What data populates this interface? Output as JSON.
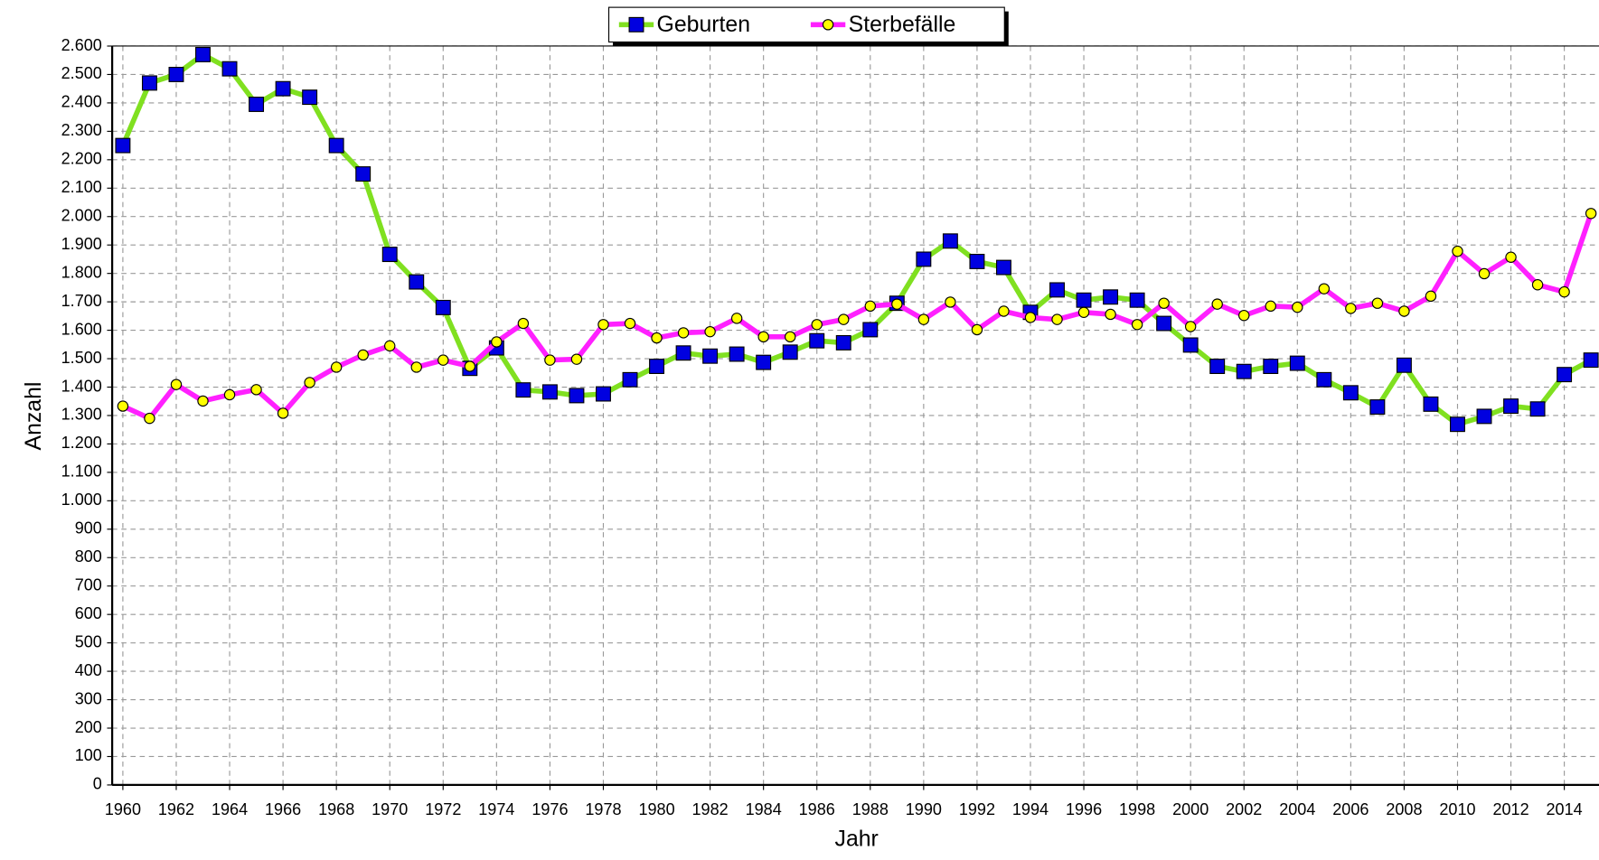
{
  "chart_data": {
    "type": "line",
    "x": [
      1960,
      1961,
      1962,
      1963,
      1964,
      1965,
      1966,
      1967,
      1968,
      1969,
      1970,
      1971,
      1972,
      1973,
      1974,
      1975,
      1976,
      1977,
      1978,
      1979,
      1980,
      1981,
      1982,
      1983,
      1984,
      1985,
      1986,
      1987,
      1988,
      1989,
      1990,
      1991,
      1992,
      1993,
      1994,
      1995,
      1996,
      1997,
      1998,
      1999,
      2000,
      2001,
      2002,
      2003,
      2004,
      2005,
      2006,
      2007,
      2008,
      2009,
      2010,
      2011,
      2012,
      2013,
      2014,
      2015
    ],
    "series": [
      {
        "name": "Geburten",
        "color": "#80e020",
        "marker": "square",
        "marker_color": "#0000e0",
        "values": [
          2250,
          2470,
          2500,
          2570,
          2520,
          2395,
          2450,
          2420,
          2250,
          2150,
          1867,
          1770,
          1680,
          1466,
          1538,
          1390,
          1383,
          1370,
          1376,
          1426,
          1473,
          1520,
          1509,
          1516,
          1487,
          1523,
          1563,
          1556,
          1602,
          1695,
          1850,
          1914,
          1842,
          1821,
          1663,
          1742,
          1706,
          1717,
          1706,
          1624,
          1548,
          1473,
          1455,
          1473,
          1484,
          1426,
          1380,
          1330,
          1477,
          1340,
          1269,
          1297,
          1333,
          1323,
          1444,
          1495
        ]
      },
      {
        "name": "Sterbefälle",
        "color": "#ff20ff",
        "marker": "circle",
        "marker_color": "#ffff00",
        "values": [
          1333,
          1290,
          1409,
          1351,
          1373,
          1391,
          1308,
          1416,
          1470,
          1513,
          1545,
          1470,
          1495,
          1473,
          1559,
          1624,
          1495,
          1498,
          1620,
          1624,
          1573,
          1591,
          1595,
          1642,
          1577,
          1577,
          1620,
          1638,
          1685,
          1692,
          1638,
          1699,
          1602,
          1667,
          1645,
          1638,
          1663,
          1656,
          1620,
          1695,
          1613,
          1692,
          1652,
          1685,
          1681,
          1746,
          1677,
          1695,
          1667,
          1720,
          1878,
          1799,
          1857,
          1760,
          1735,
          2011
        ]
      }
    ],
    "xlabel": "Jahr",
    "ylabel": "Anzahl",
    "xlim": [
      1959.6,
      2015.3
    ],
    "xticks": [
      1960,
      1962,
      1964,
      1966,
      1968,
      1970,
      1972,
      1974,
      1976,
      1978,
      1980,
      1982,
      1984,
      1986,
      1988,
      1990,
      1992,
      1994,
      1996,
      1998,
      2000,
      2002,
      2004,
      2006,
      2008,
      2010,
      2012,
      2014
    ],
    "ylim": [
      0,
      2600
    ],
    "yticks": [
      0,
      100,
      200,
      300,
      400,
      500,
      600,
      700,
      800,
      900,
      {
        "value": 1000,
        "label": "1.000"
      },
      {
        "value": 1100,
        "label": "1.100"
      },
      {
        "value": 1200,
        "label": "1.200"
      },
      {
        "value": 1300,
        "label": "1.300"
      },
      {
        "value": 1400,
        "label": "1.400"
      },
      {
        "value": 1500,
        "label": "1.500"
      },
      {
        "value": 1600,
        "label": "1.600"
      },
      {
        "value": 1700,
        "label": "1.700"
      },
      {
        "value": 1800,
        "label": "1.800"
      },
      {
        "value": 1900,
        "label": "1.900"
      },
      {
        "value": 2000,
        "label": "2.000"
      },
      {
        "value": 2100,
        "label": "2.100"
      },
      {
        "value": 2200,
        "label": "2.200"
      },
      {
        "value": 2300,
        "label": "2.300"
      },
      {
        "value": 2400,
        "label": "2.400"
      },
      {
        "value": 2500,
        "label": "2.500"
      },
      {
        "value": 2600,
        "label": "2.600"
      }
    ],
    "grid": true,
    "legend": "top"
  }
}
